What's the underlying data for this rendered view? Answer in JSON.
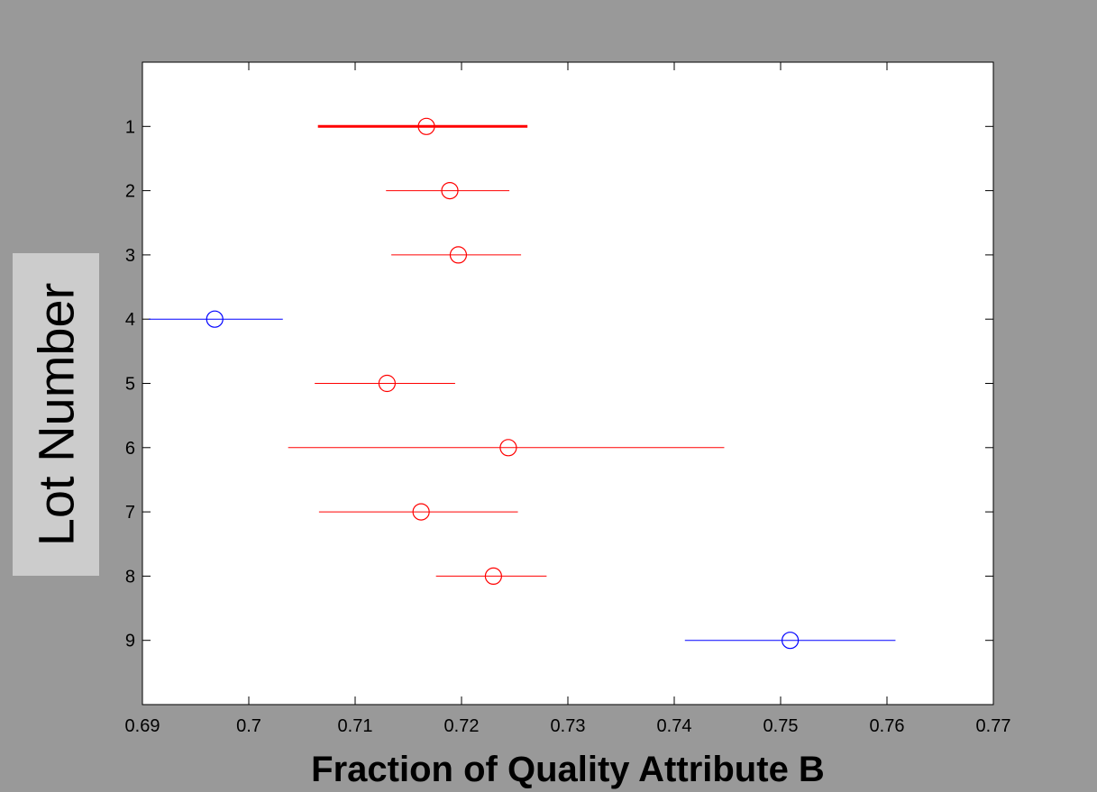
{
  "chart_data": {
    "type": "scatter",
    "subtype": "interval-plot",
    "xlabel": "Fraction of Quality Attribute B",
    "ylabel": "Lot Number",
    "xlim": [
      0.69,
      0.77
    ],
    "ylim": [
      0,
      10
    ],
    "y_reversed": true,
    "x_ticks": [
      "0.69",
      "0.7",
      "0.71",
      "0.72",
      "0.73",
      "0.74",
      "0.75",
      "0.76",
      "0.77"
    ],
    "y_ticks": [
      "1",
      "2",
      "3",
      "4",
      "5",
      "6",
      "7",
      "8",
      "9"
    ],
    "grid": false,
    "colors": {
      "highlight": "#ff0000",
      "comparison_interval": "#ff0000",
      "significantly_different": "#0000ff",
      "figure_background": "#999999",
      "axes_background": "#ffffff",
      "ylabel_box": "#cccccc"
    },
    "points": [
      {
        "lot": 1,
        "mean": 0.7167,
        "lower": 0.7065,
        "upper": 0.7262,
        "color": "#ff0000",
        "bold": true
      },
      {
        "lot": 2,
        "mean": 0.7189,
        "lower": 0.7129,
        "upper": 0.7245,
        "color": "#ff0000",
        "bold": false
      },
      {
        "lot": 3,
        "mean": 0.7197,
        "lower": 0.7134,
        "upper": 0.7256,
        "color": "#ff0000",
        "bold": false
      },
      {
        "lot": 4,
        "mean": 0.6968,
        "lower": 0.6906,
        "upper": 0.7032,
        "color": "#0000ff",
        "bold": false
      },
      {
        "lot": 5,
        "mean": 0.713,
        "lower": 0.7062,
        "upper": 0.7194,
        "color": "#ff0000",
        "bold": false
      },
      {
        "lot": 6,
        "mean": 0.7244,
        "lower": 0.7037,
        "upper": 0.7447,
        "color": "#ff0000",
        "bold": false
      },
      {
        "lot": 7,
        "mean": 0.7162,
        "lower": 0.7066,
        "upper": 0.7253,
        "color": "#ff0000",
        "bold": false
      },
      {
        "lot": 8,
        "mean": 0.723,
        "lower": 0.7176,
        "upper": 0.728,
        "color": "#ff0000",
        "bold": false
      },
      {
        "lot": 9,
        "mean": 0.7509,
        "lower": 0.741,
        "upper": 0.7608,
        "color": "#0000ff",
        "bold": false
      }
    ]
  }
}
